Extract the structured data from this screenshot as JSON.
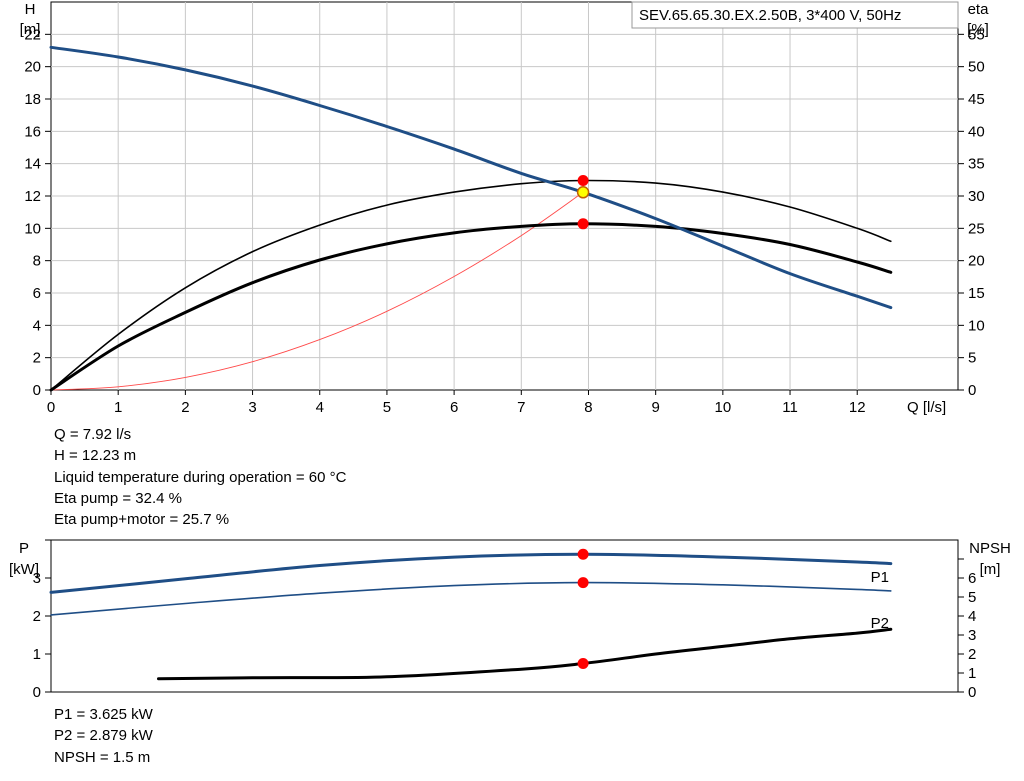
{
  "chart_data": [
    {
      "type": "line",
      "title": "SEV.65.65.30.EX.2.50B, 3*400  V, 50Hz",
      "xlabel": "Q [l/s]",
      "ylabel_left": [
        "H",
        "[m]"
      ],
      "ylabel_right": [
        "eta",
        "[%]"
      ],
      "xlim": [
        0,
        13.5
      ],
      "xticks": [
        "0",
        "1",
        "2",
        "3",
        "4",
        "5",
        "6",
        "7",
        "8",
        "9",
        "10",
        "11",
        "12"
      ],
      "ylim_left": [
        0,
        24
      ],
      "yticks_left": [
        "0",
        "2",
        "4",
        "6",
        "8",
        "10",
        "12",
        "14",
        "16",
        "18",
        "20",
        "22"
      ],
      "ylim_right": [
        0,
        60
      ],
      "yticks_right": [
        "0",
        "5",
        "10",
        "15",
        "20",
        "25",
        "30",
        "35",
        "40",
        "45",
        "50",
        "55"
      ],
      "grid": true,
      "series": [
        {
          "key": "H",
          "axis": "left",
          "color": "#1f4e86",
          "width": 3,
          "x": [
            0,
            1,
            2,
            3,
            4,
            5,
            6,
            7,
            7.92,
            9,
            10,
            11,
            12,
            12.5
          ],
          "y": [
            21.2,
            20.6,
            19.8,
            18.8,
            17.6,
            16.3,
            14.9,
            13.4,
            12.23,
            10.6,
            8.9,
            7.2,
            5.8,
            5.1
          ]
        },
        {
          "key": "eta_pump",
          "axis": "right",
          "color": "#000000",
          "width": 1.6,
          "x": [
            0,
            1,
            2,
            3,
            4,
            5,
            6,
            7,
            7.92,
            9,
            10,
            11,
            12,
            12.5
          ],
          "y": [
            0,
            8.6,
            15.8,
            21.4,
            25.5,
            28.6,
            30.6,
            31.9,
            32.4,
            32.0,
            30.6,
            28.3,
            25.0,
            23.0
          ]
        },
        {
          "key": "eta_pump_motor",
          "axis": "right",
          "color": "#000000",
          "width": 3,
          "x": [
            0,
            1,
            2,
            3,
            4,
            5,
            6,
            7,
            7.92,
            9,
            10,
            11,
            12,
            12.5
          ],
          "y": [
            0,
            6.8,
            12.0,
            16.6,
            20.1,
            22.6,
            24.3,
            25.3,
            25.7,
            25.3,
            24.2,
            22.5,
            19.8,
            18.2
          ]
        },
        {
          "key": "system",
          "axis": "left",
          "color": "#ff4a4a",
          "width": 0.9,
          "x": [
            0,
            1,
            2,
            3,
            4,
            5,
            6,
            7,
            7.92
          ],
          "y": [
            0,
            0.2,
            0.78,
            1.75,
            3.12,
            4.87,
            7.02,
            9.55,
            12.23
          ]
        }
      ],
      "markers": [
        {
          "x": 7.92,
          "y": 32.4,
          "axis": "right",
          "color": "#ff0000"
        },
        {
          "x": 7.92,
          "y": 25.7,
          "axis": "right",
          "color": "#ff0000"
        },
        {
          "x": 7.92,
          "y": 12.23,
          "axis": "left",
          "color": "#ffff00"
        }
      ]
    },
    {
      "type": "line",
      "ylabel_left": [
        "P",
        "[kW]"
      ],
      "ylabel_right": [
        "NPSH",
        "[m]"
      ],
      "xlim": [
        0,
        13.5
      ],
      "ylim_left": [
        0,
        4
      ],
      "yticks_left": [
        "0",
        "1",
        "2",
        "3"
      ],
      "ylim_right": [
        0,
        8
      ],
      "yticks_right": [
        "0",
        "1",
        "2",
        "3",
        "4",
        "5",
        "6"
      ],
      "grid": false,
      "series": [
        {
          "key": "P1",
          "name": "P1",
          "axis": "left",
          "color": "#1f4e86",
          "width": 3,
          "x": [
            0,
            2,
            4,
            6,
            7.92,
            10,
            12,
            12.5
          ],
          "y": [
            2.62,
            2.98,
            3.33,
            3.55,
            3.625,
            3.55,
            3.42,
            3.38
          ]
        },
        {
          "key": "P2",
          "name": "P2",
          "axis": "left",
          "color": "#1f4e86",
          "width": 1.6,
          "x": [
            0,
            2,
            4,
            6,
            7.92,
            10,
            12,
            12.5
          ],
          "y": [
            2.03,
            2.33,
            2.6,
            2.8,
            2.879,
            2.82,
            2.7,
            2.66
          ]
        },
        {
          "key": "NPSH",
          "axis": "right",
          "color": "#000000",
          "width": 3,
          "x": [
            1.6,
            3,
            5,
            7,
            7.92,
            9,
            10,
            11,
            12,
            12.5
          ],
          "y": [
            0.7,
            0.75,
            0.8,
            1.2,
            1.5,
            2.0,
            2.4,
            2.8,
            3.1,
            3.3
          ]
        }
      ],
      "markers": [
        {
          "x": 7.92,
          "y": 3.625,
          "axis": "left",
          "color": "#ff0000"
        },
        {
          "x": 7.92,
          "y": 2.879,
          "axis": "left",
          "color": "#ff0000"
        },
        {
          "x": 7.92,
          "y": 1.5,
          "axis": "right",
          "color": "#ff0000"
        }
      ]
    }
  ],
  "readout_top": [
    "Q = 7.92 l/s",
    "H = 12.23 m",
    "Liquid temperature during operation = 60 °C",
    "Eta pump = 32.4 %",
    "Eta pump+motor = 25.7 %"
  ],
  "readout_bottom": [
    "P1 = 3.625 kW",
    "P2 = 2.879 kW",
    "NPSH = 1.5 m"
  ]
}
